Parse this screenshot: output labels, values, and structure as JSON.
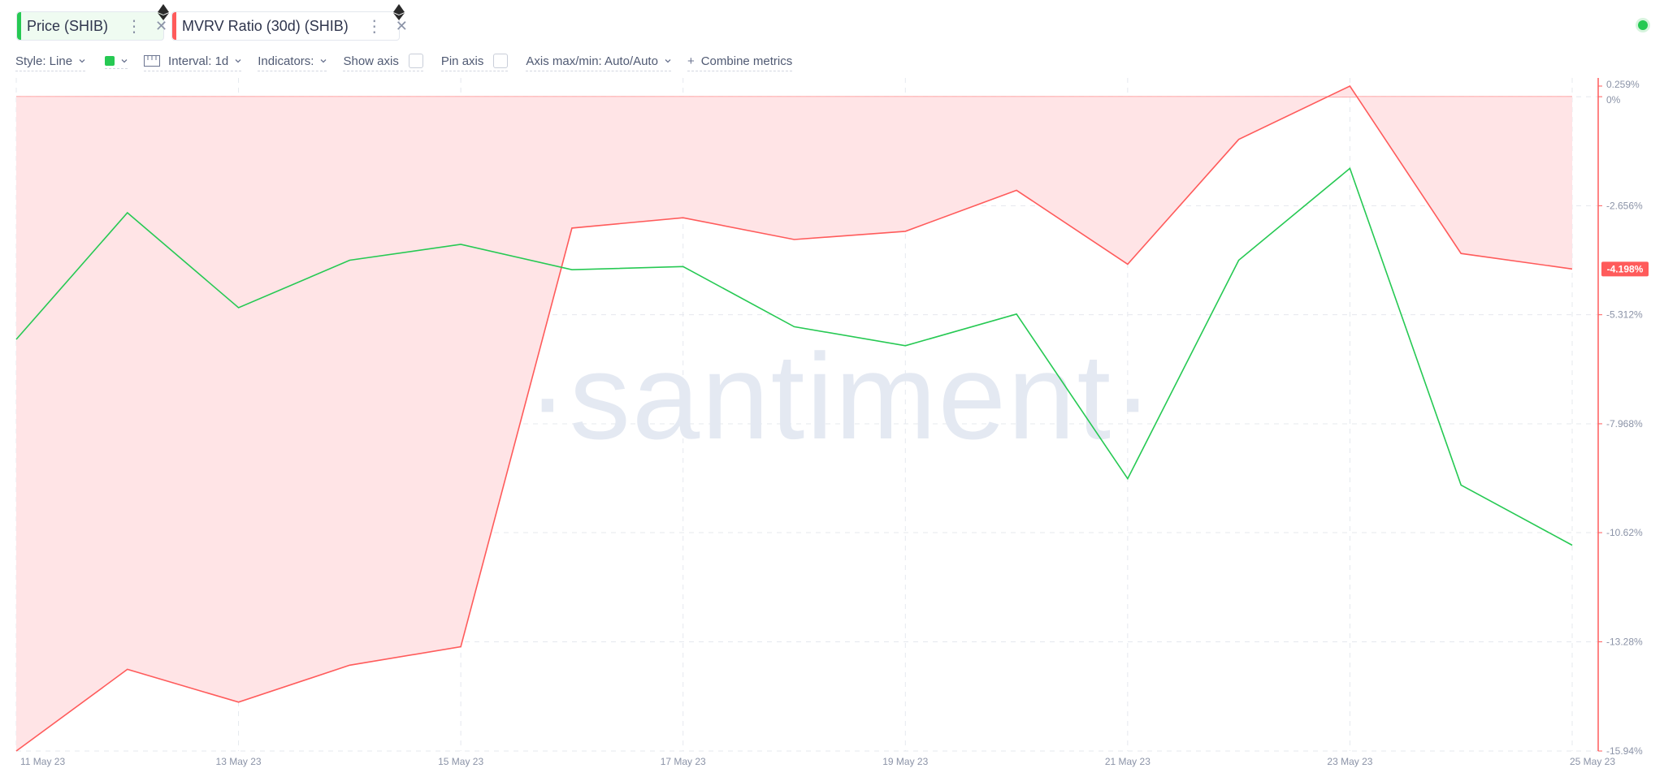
{
  "metrics": [
    {
      "label": "Price (SHIB)",
      "color": "#26c953"
    },
    {
      "label": "MVRV Ratio (30d) (SHIB)",
      "color": "#ff5b5b"
    }
  ],
  "toolbar": {
    "style_label": "Style: Line",
    "interval_label": "Interval: 1d",
    "indicators_label": "Indicators:",
    "show_axis_label": "Show axis",
    "pin_axis_label": "Pin axis",
    "axis_maxmin_label": "Axis max/min: Auto/Auto",
    "combine_label": "Combine metrics"
  },
  "watermark": "·santiment·",
  "chart_data": {
    "type": "line",
    "x": [
      "11 May 23",
      "12 May 23",
      "13 May 23",
      "14 May 23",
      "15 May 23",
      "16 May 23",
      "17 May 23",
      "18 May 23",
      "19 May 23",
      "20 May 23",
      "21 May 23",
      "22 May 23",
      "23 May 23",
      "24 May 23",
      "25 May 23"
    ],
    "x_tick_labels": [
      "11 May 23",
      "13 May 23",
      "15 May 23",
      "17 May 23",
      "19 May 23",
      "21 May 23",
      "23 May 23",
      "25 May 23"
    ],
    "series": [
      {
        "name": "MVRV Ratio (30d) (SHIB)",
        "color": "#ff5b5b",
        "fill": "#ffe4e6",
        "values": [
          -15.94,
          -13.95,
          -14.75,
          -13.85,
          -13.4,
          -3.2,
          -2.95,
          -3.48,
          -3.28,
          -2.28,
          -4.08,
          -1.04,
          0.259,
          -3.82,
          -4.198
        ],
        "current_value_label": "-4.198%"
      },
      {
        "name": "Price (SHIB)",
        "color": "#26c953",
        "values": [
          0.4,
          0.8,
          0.5,
          0.65,
          0.7,
          0.62,
          0.63,
          0.44,
          0.38,
          0.48,
          -0.04,
          0.65,
          0.94,
          -0.06,
          -0.25
        ]
      }
    ],
    "y_axis": {
      "label_unit": "%",
      "ylim": [
        -15.94,
        0.259
      ],
      "tick_labels": [
        "0.259%",
        "0%",
        "-2.656%",
        "-5.312%",
        "-7.968%",
        "-10.62%",
        "-13.28%",
        "-15.94%"
      ],
      "tick_values": [
        0.259,
        0,
        -2.656,
        -5.312,
        -7.968,
        -10.62,
        -13.28,
        -15.94
      ]
    },
    "price_axis_hidden": {
      "ylim": [
        -0.9,
        1.2
      ]
    },
    "grid": true
  }
}
